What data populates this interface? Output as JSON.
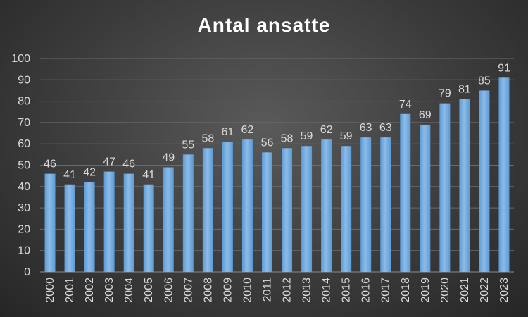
{
  "chart_data": {
    "type": "bar",
    "title": "Antal ansatte",
    "xlabel": "",
    "ylabel": "",
    "categories": [
      "2000",
      "2001",
      "2002",
      "2003",
      "2004",
      "2005",
      "2006",
      "2007",
      "2008",
      "2009",
      "2010",
      "2011",
      "2012",
      "2013",
      "2014",
      "2015",
      "2016",
      "2017",
      "2018",
      "2019",
      "2020",
      "2021",
      "2022",
      "2023"
    ],
    "values": [
      46,
      41,
      42,
      47,
      46,
      41,
      49,
      55,
      58,
      61,
      62,
      56,
      58,
      59,
      62,
      59,
      63,
      63,
      74,
      69,
      79,
      81,
      85,
      91
    ],
    "ylim": [
      0,
      100
    ],
    "yticks": [
      0,
      10,
      20,
      30,
      40,
      50,
      60,
      70,
      80,
      90,
      100
    ],
    "grid": true,
    "legend": "none",
    "bar_color": "#5b9bd5",
    "bar_color_light": "#8dbbe8",
    "data_labels": true
  }
}
